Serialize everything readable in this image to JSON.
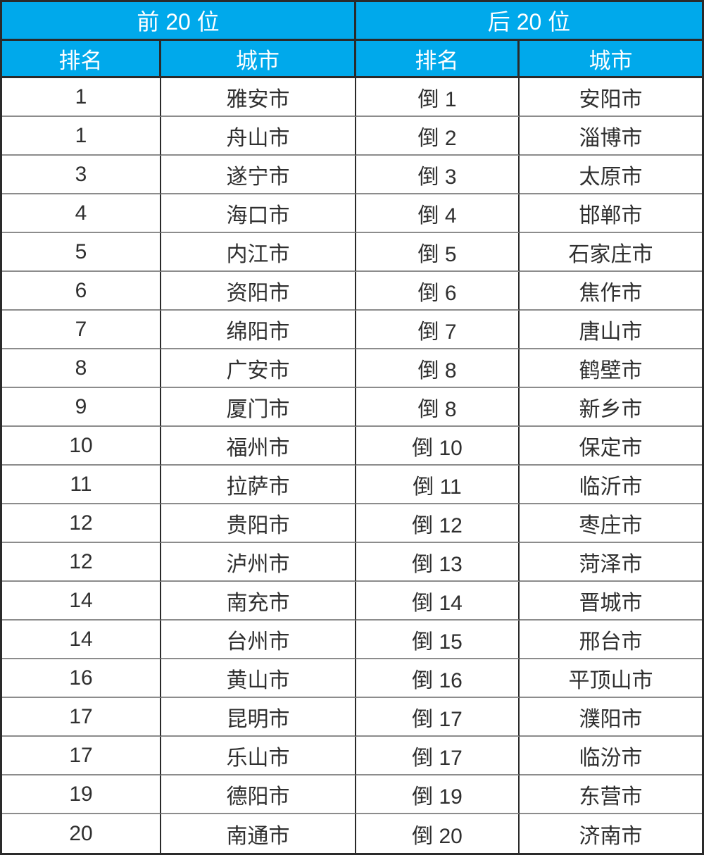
{
  "chart_data": {
    "type": "table",
    "groups": [
      "前 20 位",
      "后 20 位"
    ],
    "columns": [
      "排名",
      "城市",
      "排名",
      "城市"
    ],
    "rows": [
      [
        "1",
        "雅安市",
        "倒 1",
        "安阳市"
      ],
      [
        "1",
        "舟山市",
        "倒 2",
        "淄博市"
      ],
      [
        "3",
        "遂宁市",
        "倒 3",
        "太原市"
      ],
      [
        "4",
        "海口市",
        "倒 4",
        "邯郸市"
      ],
      [
        "5",
        "内江市",
        "倒 5",
        "石家庄市"
      ],
      [
        "6",
        "资阳市",
        "倒 6",
        "焦作市"
      ],
      [
        "7",
        "绵阳市",
        "倒 7",
        "唐山市"
      ],
      [
        "8",
        "广安市",
        "倒 8",
        "鹤壁市"
      ],
      [
        "9",
        "厦门市",
        "倒 8",
        "新乡市"
      ],
      [
        "10",
        "福州市",
        "倒 10",
        "保定市"
      ],
      [
        "11",
        "拉萨市",
        "倒 11",
        "临沂市"
      ],
      [
        "12",
        "贵阳市",
        "倒 12",
        "枣庄市"
      ],
      [
        "12",
        "泸州市",
        "倒 13",
        "菏泽市"
      ],
      [
        "14",
        "南充市",
        "倒 14",
        "晋城市"
      ],
      [
        "14",
        "台州市",
        "倒 15",
        "邢台市"
      ],
      [
        "16",
        "黄山市",
        "倒 16",
        "平顶山市"
      ],
      [
        "17",
        "昆明市",
        "倒 17",
        "濮阳市"
      ],
      [
        "17",
        "乐山市",
        "倒 17",
        "临汾市"
      ],
      [
        "19",
        "德阳市",
        "倒 19",
        "东营市"
      ],
      [
        "20",
        "南通市",
        "倒 20",
        "济南市"
      ]
    ],
    "layout": {
      "header_bg": "#00a9eb",
      "header_text_color": "#ffffff",
      "body_text_color": "#2f2f2f",
      "grid_dark_border": "#2a2a2a",
      "row_separator": "#8c8c8c",
      "column_count": 4,
      "data_row_count": 20
    }
  }
}
